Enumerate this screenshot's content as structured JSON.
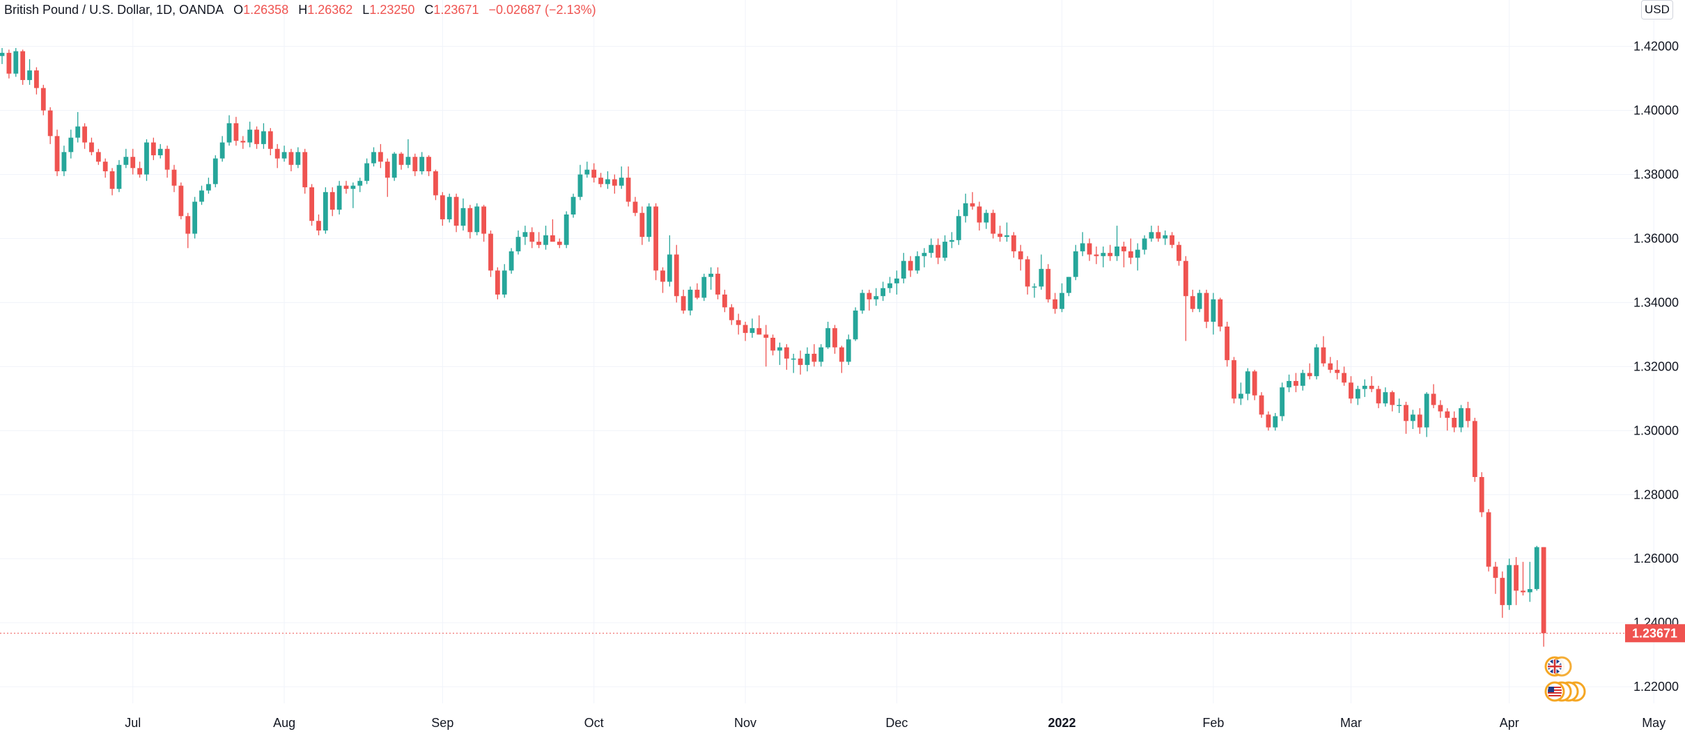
{
  "legend": {
    "symbol": "British Pound / U.S. Dollar, 1D, OANDA",
    "o_key": "O",
    "o_val": "1.26358",
    "h_key": "H",
    "h_val": "1.26362",
    "l_key": "L",
    "l_val": "1.23250",
    "c_key": "C",
    "c_val": "1.23671",
    "change": "−0.02687 (−2.13%)"
  },
  "currency_button": "USD",
  "colors": {
    "up": "#26a69a",
    "down": "#ef5350",
    "grid": "#f0f3fa",
    "text": "#131722"
  },
  "chart_data": {
    "type": "candlestick",
    "y_ticks": [
      "1.42000",
      "1.40000",
      "1.38000",
      "1.36000",
      "1.34000",
      "1.32000",
      "1.30000",
      "1.28000",
      "1.26000",
      "1.24000",
      "1.22000"
    ],
    "ylim": [
      1.2148,
      1.4345
    ],
    "x_ticks": [
      {
        "label": "Jul",
        "bold": false,
        "index": 19
      },
      {
        "label": "Aug",
        "bold": false,
        "index": 41
      },
      {
        "label": "Sep",
        "bold": false,
        "index": 64
      },
      {
        "label": "Oct",
        "bold": false,
        "index": 86
      },
      {
        "label": "Nov",
        "bold": false,
        "index": 108
      },
      {
        "label": "Dec",
        "bold": false,
        "index": 130
      },
      {
        "label": "2022",
        "bold": true,
        "index": 154
      },
      {
        "label": "Feb",
        "bold": false,
        "index": 176
      },
      {
        "label": "Mar",
        "bold": false,
        "index": 196
      },
      {
        "label": "Apr",
        "bold": false,
        "index": 219
      },
      {
        "label": "May",
        "bold": false,
        "index": 240
      }
    ],
    "last_price": "1.23671",
    "last_value": 1.23671,
    "ohlc": [
      [
        1.417,
        1.4195,
        1.4145,
        1.418
      ],
      [
        1.418,
        1.419,
        1.41,
        1.4115
      ],
      [
        1.4115,
        1.4195,
        1.4105,
        1.4185
      ],
      [
        1.4185,
        1.419,
        1.408,
        1.4095
      ],
      [
        1.4095,
        1.416,
        1.408,
        1.4125
      ],
      [
        1.4125,
        1.4135,
        1.405,
        1.407
      ],
      [
        1.407,
        1.408,
        1.3985,
        1.4
      ],
      [
        1.4,
        1.401,
        1.3895,
        1.392
      ],
      [
        1.392,
        1.394,
        1.3795,
        1.381
      ],
      [
        1.381,
        1.389,
        1.3795,
        1.387
      ],
      [
        1.387,
        1.394,
        1.385,
        1.3915
      ],
      [
        1.3915,
        1.3995,
        1.39,
        1.395
      ],
      [
        1.395,
        1.396,
        1.388,
        1.39
      ],
      [
        1.39,
        1.3915,
        1.386,
        1.387
      ],
      [
        1.387,
        1.388,
        1.383,
        1.384
      ],
      [
        1.384,
        1.385,
        1.379,
        1.381
      ],
      [
        1.381,
        1.382,
        1.3735,
        1.3755
      ],
      [
        1.3755,
        1.3845,
        1.3745,
        1.383
      ],
      [
        1.383,
        1.388,
        1.382,
        1.3855
      ],
      [
        1.3855,
        1.388,
        1.38,
        1.382
      ],
      [
        1.382,
        1.384,
        1.379,
        1.38
      ],
      [
        1.38,
        1.391,
        1.378,
        1.39
      ],
      [
        1.39,
        1.3915,
        1.3845,
        1.386
      ],
      [
        1.386,
        1.3895,
        1.385,
        1.388
      ],
      [
        1.388,
        1.389,
        1.379,
        1.3815
      ],
      [
        1.3815,
        1.383,
        1.3745,
        1.3765
      ],
      [
        1.3765,
        1.3775,
        1.366,
        1.367
      ],
      [
        1.367,
        1.368,
        1.357,
        1.3615
      ],
      [
        1.3615,
        1.373,
        1.36,
        1.3715
      ],
      [
        1.3715,
        1.3765,
        1.3705,
        1.375
      ],
      [
        1.375,
        1.379,
        1.374,
        1.377
      ],
      [
        1.377,
        1.386,
        1.376,
        1.385
      ],
      [
        1.385,
        1.392,
        1.384,
        1.39
      ],
      [
        1.39,
        1.3985,
        1.389,
        1.396
      ],
      [
        1.396,
        1.398,
        1.389,
        1.3905
      ],
      [
        1.3905,
        1.392,
        1.388,
        1.39
      ],
      [
        1.39,
        1.3965,
        1.3885,
        1.394
      ],
      [
        1.394,
        1.395,
        1.388,
        1.3895
      ],
      [
        1.3895,
        1.396,
        1.388,
        1.3935
      ],
      [
        1.3935,
        1.3945,
        1.386,
        1.388
      ],
      [
        1.388,
        1.3895,
        1.382,
        1.385
      ],
      [
        1.385,
        1.389,
        1.384,
        1.387
      ],
      [
        1.387,
        1.388,
        1.381,
        1.383
      ],
      [
        1.383,
        1.3885,
        1.382,
        1.387
      ],
      [
        1.387,
        1.388,
        1.374,
        1.376
      ],
      [
        1.376,
        1.377,
        1.364,
        1.3655
      ],
      [
        1.3655,
        1.3675,
        1.361,
        1.3625
      ],
      [
        1.3625,
        1.376,
        1.3615,
        1.3745
      ],
      [
        1.3745,
        1.376,
        1.367,
        1.369
      ],
      [
        1.369,
        1.378,
        1.3675,
        1.3765
      ],
      [
        1.3765,
        1.378,
        1.374,
        1.3755
      ],
      [
        1.3755,
        1.3775,
        1.3695,
        1.3765
      ],
      [
        1.3765,
        1.379,
        1.3745,
        1.378
      ],
      [
        1.378,
        1.385,
        1.377,
        1.3835
      ],
      [
        1.3835,
        1.3885,
        1.3825,
        1.387
      ],
      [
        1.387,
        1.3895,
        1.382,
        1.384
      ],
      [
        1.384,
        1.385,
        1.373,
        1.379
      ],
      [
        1.379,
        1.387,
        1.378,
        1.3865
      ],
      [
        1.3865,
        1.387,
        1.3815,
        1.383
      ],
      [
        1.383,
        1.391,
        1.382,
        1.3855
      ],
      [
        1.3855,
        1.3865,
        1.3795,
        1.381
      ],
      [
        1.381,
        1.387,
        1.38,
        1.3855
      ],
      [
        1.3855,
        1.386,
        1.3795,
        1.381
      ],
      [
        1.381,
        1.3815,
        1.372,
        1.3735
      ],
      [
        1.3735,
        1.3745,
        1.364,
        1.366
      ],
      [
        1.366,
        1.374,
        1.365,
        1.373
      ],
      [
        1.373,
        1.374,
        1.362,
        1.364
      ],
      [
        1.364,
        1.3725,
        1.3625,
        1.3695
      ],
      [
        1.3695,
        1.3705,
        1.36,
        1.362
      ],
      [
        1.362,
        1.371,
        1.361,
        1.37
      ],
      [
        1.37,
        1.3705,
        1.359,
        1.3615
      ],
      [
        1.3615,
        1.3625,
        1.348,
        1.35
      ],
      [
        1.35,
        1.351,
        1.341,
        1.3425
      ],
      [
        1.3425,
        1.352,
        1.3415,
        1.35
      ],
      [
        1.35,
        1.357,
        1.349,
        1.356
      ],
      [
        1.356,
        1.3625,
        1.355,
        1.3605
      ],
      [
        1.3605,
        1.364,
        1.358,
        1.362
      ],
      [
        1.362,
        1.3635,
        1.357,
        1.359
      ],
      [
        1.359,
        1.362,
        1.357,
        1.358
      ],
      [
        1.358,
        1.364,
        1.3565,
        1.361
      ],
      [
        1.361,
        1.366,
        1.359,
        1.359
      ],
      [
        1.359,
        1.36,
        1.357,
        1.358
      ],
      [
        1.358,
        1.3685,
        1.357,
        1.3675
      ],
      [
        1.3675,
        1.374,
        1.3665,
        1.373
      ],
      [
        1.373,
        1.383,
        1.372,
        1.38
      ],
      [
        1.38,
        1.384,
        1.379,
        1.3815
      ],
      [
        1.3815,
        1.3835,
        1.3775,
        1.379
      ],
      [
        1.379,
        1.3805,
        1.376,
        1.377
      ],
      [
        1.377,
        1.381,
        1.3755,
        1.3785
      ],
      [
        1.3785,
        1.38,
        1.374,
        1.3765
      ],
      [
        1.3765,
        1.3825,
        1.3755,
        1.379
      ],
      [
        1.379,
        1.3825,
        1.37,
        1.3715
      ],
      [
        1.3715,
        1.373,
        1.367,
        1.368
      ],
      [
        1.368,
        1.37,
        1.358,
        1.3605
      ],
      [
        1.3605,
        1.371,
        1.359,
        1.37
      ],
      [
        1.37,
        1.371,
        1.347,
        1.35
      ],
      [
        1.35,
        1.351,
        1.343,
        1.3465
      ],
      [
        1.3465,
        1.361,
        1.345,
        1.355
      ],
      [
        1.355,
        1.358,
        1.34,
        1.342
      ],
      [
        1.342,
        1.344,
        1.3365,
        1.3375
      ],
      [
        1.3375,
        1.345,
        1.336,
        1.344
      ],
      [
        1.344,
        1.346,
        1.341,
        1.3415
      ],
      [
        1.3415,
        1.349,
        1.3405,
        1.348
      ],
      [
        1.348,
        1.351,
        1.344,
        1.349
      ],
      [
        1.349,
        1.351,
        1.341,
        1.3425
      ],
      [
        1.3425,
        1.344,
        1.337,
        1.3385
      ],
      [
        1.3385,
        1.3395,
        1.333,
        1.3345
      ],
      [
        1.3345,
        1.3365,
        1.33,
        1.333
      ],
      [
        1.333,
        1.334,
        1.328,
        1.3305
      ],
      [
        1.3305,
        1.335,
        1.329,
        1.332
      ],
      [
        1.332,
        1.336,
        1.33,
        1.33
      ],
      [
        1.33,
        1.333,
        1.32,
        1.329
      ],
      [
        1.329,
        1.33,
        1.3235,
        1.325
      ],
      [
        1.325,
        1.3275,
        1.3205,
        1.326
      ],
      [
        1.326,
        1.327,
        1.319,
        1.3225
      ],
      [
        1.3225,
        1.324,
        1.318,
        1.3225
      ],
      [
        1.3225,
        1.325,
        1.3175,
        1.3205
      ],
      [
        1.3205,
        1.326,
        1.3185,
        1.324
      ],
      [
        1.324,
        1.327,
        1.32,
        1.3215
      ],
      [
        1.3215,
        1.327,
        1.32,
        1.326
      ],
      [
        1.326,
        1.334,
        1.3255,
        1.332
      ],
      [
        1.332,
        1.333,
        1.324,
        1.326
      ],
      [
        1.326,
        1.3265,
        1.318,
        1.3215
      ],
      [
        1.3215,
        1.33,
        1.3205,
        1.3285
      ],
      [
        1.3285,
        1.3385,
        1.328,
        1.3375
      ],
      [
        1.3375,
        1.344,
        1.3365,
        1.343
      ],
      [
        1.343,
        1.344,
        1.3375,
        1.341
      ],
      [
        1.341,
        1.3445,
        1.339,
        1.342
      ],
      [
        1.342,
        1.3465,
        1.3405,
        1.3445
      ],
      [
        1.3445,
        1.348,
        1.343,
        1.346
      ],
      [
        1.346,
        1.35,
        1.3425,
        1.3475
      ],
      [
        1.3475,
        1.3555,
        1.346,
        1.353
      ],
      [
        1.353,
        1.3545,
        1.348,
        1.35
      ],
      [
        1.35,
        1.356,
        1.349,
        1.3545
      ],
      [
        1.3545,
        1.357,
        1.351,
        1.3555
      ],
      [
        1.3555,
        1.36,
        1.354,
        1.358
      ],
      [
        1.358,
        1.36,
        1.352,
        1.354
      ],
      [
        1.354,
        1.361,
        1.353,
        1.359
      ],
      [
        1.359,
        1.362,
        1.357,
        1.3595
      ],
      [
        1.3595,
        1.369,
        1.358,
        1.367
      ],
      [
        1.367,
        1.374,
        1.365,
        1.371
      ],
      [
        1.371,
        1.3745,
        1.369,
        1.37
      ],
      [
        1.37,
        1.3715,
        1.3625,
        1.365
      ],
      [
        1.365,
        1.369,
        1.363,
        1.368
      ],
      [
        1.368,
        1.369,
        1.36,
        1.3615
      ],
      [
        1.3615,
        1.364,
        1.359,
        1.3605
      ],
      [
        1.3605,
        1.365,
        1.359,
        1.361
      ],
      [
        1.361,
        1.362,
        1.354,
        1.356
      ],
      [
        1.356,
        1.358,
        1.35,
        1.3535
      ],
      [
        1.3535,
        1.3545,
        1.3425,
        1.345
      ],
      [
        1.345,
        1.346,
        1.3415,
        1.345
      ],
      [
        1.345,
        1.355,
        1.344,
        1.3505
      ],
      [
        1.3505,
        1.352,
        1.34,
        1.341
      ],
      [
        1.341,
        1.343,
        1.3365,
        1.338
      ],
      [
        1.338,
        1.346,
        1.337,
        1.343
      ],
      [
        1.343,
        1.348,
        1.342,
        1.348
      ],
      [
        1.348,
        1.358,
        1.347,
        1.356
      ],
      [
        1.356,
        1.362,
        1.3545,
        1.3585
      ],
      [
        1.3585,
        1.36,
        1.353,
        1.355
      ],
      [
        1.355,
        1.3575,
        1.352,
        1.3545
      ],
      [
        1.3545,
        1.3575,
        1.351,
        1.3555
      ],
      [
        1.3555,
        1.358,
        1.353,
        1.3545
      ],
      [
        1.3545,
        1.364,
        1.353,
        1.3575
      ],
      [
        1.3575,
        1.359,
        1.351,
        1.356
      ],
      [
        1.356,
        1.36,
        1.352,
        1.354
      ],
      [
        1.354,
        1.3585,
        1.35,
        1.3565
      ],
      [
        1.3565,
        1.361,
        1.355,
        1.36
      ],
      [
        1.36,
        1.364,
        1.359,
        1.362
      ],
      [
        1.362,
        1.364,
        1.359,
        1.36
      ],
      [
        1.36,
        1.3625,
        1.358,
        1.361
      ],
      [
        1.361,
        1.362,
        1.357,
        1.358
      ],
      [
        1.358,
        1.359,
        1.3515,
        1.353
      ],
      [
        1.353,
        1.3545,
        1.328,
        1.342
      ],
      [
        1.342,
        1.344,
        1.337,
        1.338
      ],
      [
        1.338,
        1.344,
        1.337,
        1.343
      ],
      [
        1.343,
        1.344,
        1.332,
        1.334
      ],
      [
        1.334,
        1.343,
        1.33,
        1.341
      ],
      [
        1.341,
        1.3415,
        1.331,
        1.3325
      ],
      [
        1.3325,
        1.334,
        1.32,
        1.322
      ],
      [
        1.322,
        1.323,
        1.3085,
        1.31
      ],
      [
        1.31,
        1.315,
        1.308,
        1.3115
      ],
      [
        1.3115,
        1.3195,
        1.3095,
        1.3185
      ],
      [
        1.3185,
        1.319,
        1.3095,
        1.311
      ],
      [
        1.311,
        1.312,
        1.304,
        1.305
      ],
      [
        1.305,
        1.306,
        1.3,
        1.301
      ],
      [
        1.301,
        1.3055,
        1.3,
        1.3045
      ],
      [
        1.3045,
        1.315,
        1.303,
        1.3135
      ],
      [
        1.3135,
        1.3175,
        1.312,
        1.3155
      ],
      [
        1.3155,
        1.318,
        1.312,
        1.314
      ],
      [
        1.314,
        1.319,
        1.3125,
        1.318
      ],
      [
        1.318,
        1.321,
        1.316,
        1.317
      ],
      [
        1.317,
        1.327,
        1.316,
        1.326
      ],
      [
        1.326,
        1.3295,
        1.32,
        1.321
      ],
      [
        1.321,
        1.323,
        1.318,
        1.319
      ],
      [
        1.319,
        1.322,
        1.316,
        1.318
      ],
      [
        1.318,
        1.32,
        1.314,
        1.315
      ],
      [
        1.315,
        1.317,
        1.3085,
        1.31
      ],
      [
        1.31,
        1.314,
        1.308,
        1.313
      ],
      [
        1.313,
        1.316,
        1.3105,
        1.314
      ],
      [
        1.314,
        1.317,
        1.312,
        1.313
      ],
      [
        1.313,
        1.314,
        1.307,
        1.3085
      ],
      [
        1.3085,
        1.3135,
        1.3075,
        1.312
      ],
      [
        1.312,
        1.3125,
        1.306,
        1.308
      ],
      [
        1.308,
        1.31,
        1.3055,
        1.308
      ],
      [
        1.308,
        1.309,
        1.299,
        1.303
      ],
      [
        1.303,
        1.3065,
        1.3005,
        1.305
      ],
      [
        1.305,
        1.307,
        1.299,
        1.301
      ],
      [
        1.301,
        1.312,
        1.298,
        1.3115
      ],
      [
        1.3115,
        1.3145,
        1.307,
        1.308
      ],
      [
        1.308,
        1.3095,
        1.304,
        1.306
      ],
      [
        1.306,
        1.307,
        1.3,
        1.304
      ],
      [
        1.304,
        1.306,
        1.2995,
        1.301
      ],
      [
        1.301,
        1.308,
        1.2995,
        1.307
      ],
      [
        1.307,
        1.309,
        1.301,
        1.303
      ],
      [
        1.303,
        1.304,
        1.284,
        1.2855
      ],
      [
        1.2855,
        1.287,
        1.273,
        1.2745
      ],
      [
        1.2745,
        1.2755,
        1.256,
        1.2575
      ],
      [
        1.2575,
        1.259,
        1.249,
        1.254
      ],
      [
        1.254,
        1.256,
        1.2415,
        1.2455
      ],
      [
        1.2455,
        1.26,
        1.244,
        1.258
      ],
      [
        1.258,
        1.2605,
        1.2455,
        1.25
      ],
      [
        1.25,
        1.259,
        1.2485,
        1.2495
      ],
      [
        1.2495,
        1.259,
        1.2465,
        1.2505
      ],
      [
        1.2505,
        1.264,
        1.25,
        1.2636
      ],
      [
        1.2636,
        1.2636,
        1.2325,
        1.2367
      ]
    ]
  }
}
